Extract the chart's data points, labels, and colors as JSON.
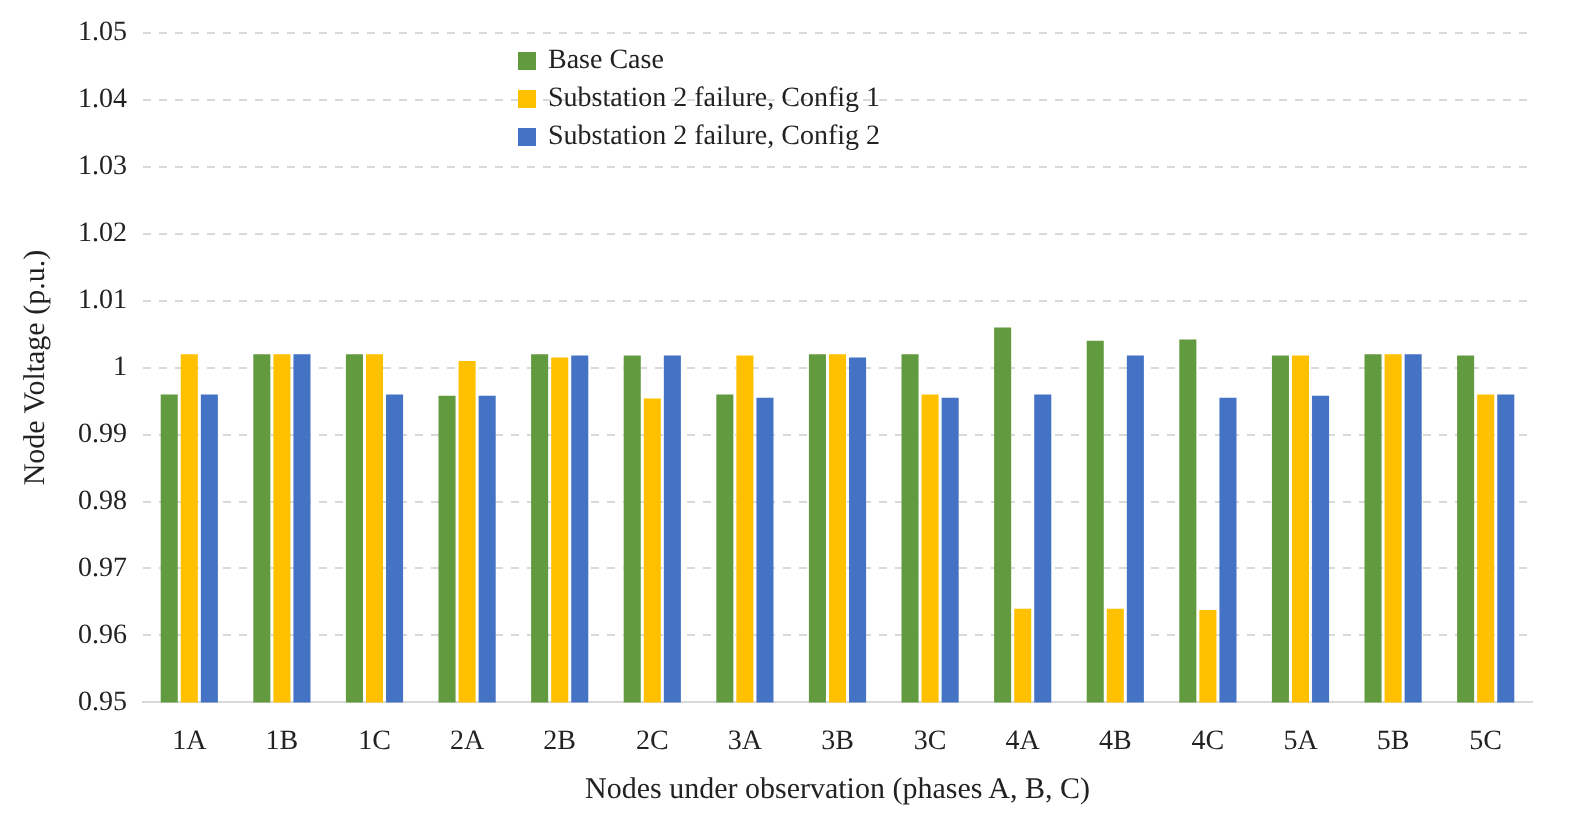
{
  "chart_data": {
    "type": "bar",
    "xlabel": "Nodes under observation (phases A, B, C)",
    "ylabel": "Node Voltage (p.u.)",
    "categories": [
      "1A",
      "1B",
      "1C",
      "2A",
      "2B",
      "2C",
      "3A",
      "3B",
      "3C",
      "4A",
      "4B",
      "4C",
      "5A",
      "5B",
      "5C"
    ],
    "series": [
      {
        "name": "Base Case",
        "color": "#629a3f",
        "values": [
          0.996,
          1.002,
          1.002,
          0.9958,
          1.002,
          1.0018,
          0.996,
          1.002,
          1.002,
          1.006,
          1.004,
          1.0042,
          1.0018,
          1.002,
          1.0018
        ]
      },
      {
        "name": "Substation 2 failure, Config 1",
        "color": "#ffc000",
        "values": [
          1.002,
          1.002,
          1.002,
          1.001,
          1.0015,
          0.9954,
          1.0018,
          1.002,
          0.996,
          0.964,
          0.964,
          0.9638,
          1.0018,
          1.002,
          0.996
        ]
      },
      {
        "name": "Substation 2 failure, Config 2",
        "color": "#4472c4",
        "values": [
          0.996,
          1.002,
          0.996,
          0.9958,
          1.0018,
          1.0018,
          0.9955,
          1.0015,
          0.9955,
          0.996,
          1.0018,
          0.9955,
          0.9958,
          1.002,
          0.996
        ]
      }
    ],
    "ylim": [
      0.95,
      1.05
    ],
    "yticks": [
      0.95,
      0.96,
      0.97,
      0.98,
      0.99,
      1,
      1.01,
      1.02,
      1.03,
      1.04,
      1.05
    ],
    "grid": "y",
    "legend": "top"
  }
}
